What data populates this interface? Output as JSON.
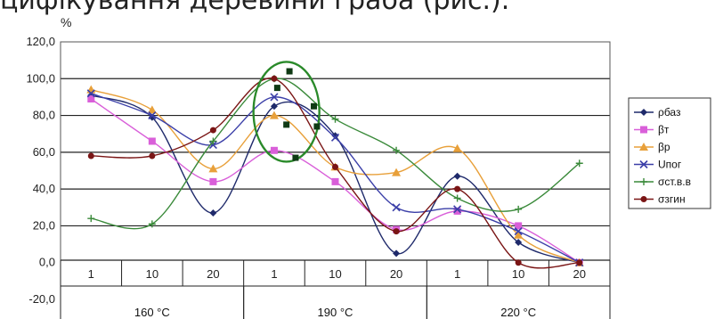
{
  "header": {
    "text": "цифікування деревини граба (рис.)."
  },
  "chart_data": {
    "type": "line",
    "ylabel": "%",
    "ylim": [
      -20,
      120
    ],
    "ytick_step": 20,
    "yticks": [
      "-20,0",
      "0,0",
      "20,0",
      "40,0",
      "60,0",
      "80,0",
      "100,0",
      "120,0"
    ],
    "grid": "horizontal",
    "legend_position": "right",
    "categories": [
      "1",
      "10",
      "20",
      "1",
      "10",
      "20",
      "1",
      "10",
      "20"
    ],
    "groups": [
      {
        "label": "160 °C",
        "span": [
          0,
          2
        ]
      },
      {
        "label": "190 °C",
        "span": [
          3,
          5
        ]
      },
      {
        "label": "220 °C",
        "span": [
          6,
          8
        ]
      }
    ],
    "series": [
      {
        "name": "ρбаз",
        "color": "#1f2a6b",
        "marker": "diamond",
        "values": [
          91,
          79,
          27,
          85,
          69,
          5,
          47,
          11,
          0
        ]
      },
      {
        "name": "βт",
        "color": "#d95fd9",
        "marker": "square",
        "values": [
          89,
          66,
          44,
          61,
          44,
          18,
          28,
          20,
          0
        ]
      },
      {
        "name": "βр",
        "color": "#e8a03a",
        "marker": "triangle",
        "values": [
          94,
          83,
          51,
          80,
          52,
          49,
          62,
          15,
          0
        ]
      },
      {
        "name": "Uпог",
        "color": "#3b3fa8",
        "marker": "x",
        "values": [
          92,
          80,
          64,
          90,
          68,
          30,
          29,
          17,
          0
        ]
      },
      {
        "name": "σст.в.в",
        "color": "#3a8a3a",
        "marker": "plus",
        "values": [
          24,
          21,
          66,
          100,
          78,
          61,
          35,
          29,
          54
        ]
      },
      {
        "name": "σзгин",
        "color": "#7a1515",
        "marker": "circle",
        "values": [
          58,
          58,
          72,
          100,
          52,
          17,
          40,
          0,
          0
        ]
      }
    ],
    "annotation": {
      "shape": "ellipse",
      "color": "#2a8a2a",
      "at_category": 3.7,
      "center_y": 82,
      "points": [
        {
          "cat": 3.55,
          "y": 95
        },
        {
          "cat": 3.75,
          "y": 104
        },
        {
          "cat": 4.15,
          "y": 85
        },
        {
          "cat": 4.2,
          "y": 74
        },
        {
          "cat": 3.7,
          "y": 75
        },
        {
          "cat": 3.85,
          "y": 57
        }
      ]
    }
  }
}
